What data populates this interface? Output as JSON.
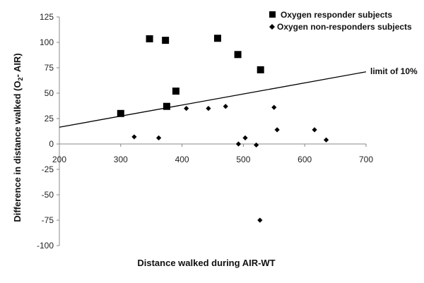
{
  "chart_data": {
    "type": "scatter",
    "xlabel": "Distance walked during AIR-WT",
    "ylabel_main": "Difference in distance walked (O",
    "ylabel_sub": "2",
    "ylabel_tail": "- AIR)",
    "xlim": [
      200,
      700
    ],
    "ylim": [
      -100,
      125
    ],
    "xticks": [
      200,
      300,
      400,
      500,
      600,
      700
    ],
    "yticks": [
      125,
      100,
      75,
      50,
      25,
      0,
      -25,
      -50,
      -75,
      -100
    ],
    "legend_position": "top-right",
    "grid": false,
    "series": [
      {
        "name": "Oxygen responder subjects",
        "marker": "square",
        "color": "#000000",
        "points": [
          [
            300,
            30
          ],
          [
            347,
            103.5
          ],
          [
            373,
            102
          ],
          [
            375,
            37
          ],
          [
            390,
            52
          ],
          [
            458,
            104
          ],
          [
            491,
            88
          ],
          [
            528,
            73
          ]
        ]
      },
      {
        "name": "Oxygen non-responders subjects",
        "marker": "diamond",
        "color": "#000000",
        "points": [
          [
            322,
            7
          ],
          [
            362,
            6
          ],
          [
            407,
            35
          ],
          [
            443,
            35
          ],
          [
            471,
            37
          ],
          [
            492,
            0
          ],
          [
            503,
            6
          ],
          [
            521,
            -1
          ],
          [
            527,
            -75
          ],
          [
            550,
            36
          ],
          [
            555,
            14
          ],
          [
            616,
            14
          ],
          [
            635,
            4
          ]
        ]
      }
    ],
    "reference_line": {
      "label": "limit of 10%",
      "from": [
        200,
        16.5
      ],
      "to": [
        700,
        71
      ]
    }
  }
}
